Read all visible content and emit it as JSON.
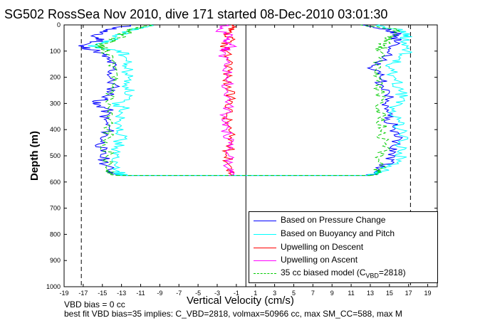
{
  "title": "SG502 RossSea Nov 2010, dive 171 started 08-Dec-2010 03:01:30",
  "footnote_bias": "VBD bias = 0 cc",
  "footnote_bestfit": "best fit VBD bias=35 implies: C_VBD=2818, volmax=50966 cc, max SM_CC=588, max M",
  "legend": {
    "pressure": "Based on Pressure Change",
    "buoyancy": "Based on Buoyancy and Pitch",
    "up_descent": "Upwelling on Descent",
    "up_ascent": "Upwelling on Ascent",
    "model_prefix": "35 cc biased model (C",
    "model_sub": "VBD",
    "model_suffix": "=2818)"
  },
  "colors": {
    "pressure": "#0000ff",
    "buoyancy": "#00ffff",
    "up_descent": "#ff0000",
    "up_ascent": "#ff00ff",
    "model": "#00cc00"
  },
  "chart_data": {
    "type": "line",
    "title": "SG502 RossSea Nov 2010, dive 171 started 08-Dec-2010 03:01:30",
    "xlabel": "Vertical Velocity (cm/s)",
    "ylabel": "Depth (m)",
    "xlim": [
      -19,
      20
    ],
    "ylim": [
      1000,
      0
    ],
    "xticks": [
      -19,
      -17,
      -15,
      -13,
      -11,
      -9,
      -7,
      -5,
      -3,
      -1,
      1,
      3,
      5,
      7,
      9,
      11,
      13,
      15,
      17,
      19
    ],
    "yticks": [
      0,
      100,
      200,
      300,
      400,
      500,
      600,
      700,
      800,
      900,
      1000
    ],
    "reference_lines": [
      -17.2,
      17.2
    ],
    "zero_line": 0,
    "grid": false,
    "legend_position": "bottom-right",
    "series": [
      {
        "name": "Based on Pressure Change",
        "descent": {
          "depth": [
            0,
            20,
            40,
            60,
            80,
            100,
            130,
            160,
            200,
            240,
            280,
            300,
            320,
            360,
            400,
            440,
            480,
            520,
            560,
            575
          ],
          "velocity": [
            -12,
            -14.5,
            -16,
            -15,
            -17.5,
            -15.5,
            -14.5,
            -13.8,
            -14.2,
            -13.8,
            -14.5,
            -16,
            -14.5,
            -14.8,
            -14.3,
            -15,
            -15.2,
            -14.8,
            -14.2,
            -13
          ]
        },
        "ascent": {
          "depth": [
            575,
            560,
            520,
            480,
            440,
            400,
            360,
            320,
            280,
            240,
            200,
            160,
            130,
            100,
            60,
            40,
            20,
            0
          ],
          "velocity": [
            13,
            13.5,
            15.2,
            15,
            16,
            15.5,
            15,
            14.5,
            15,
            14.2,
            14,
            13.2,
            14.5,
            15,
            15.5,
            16,
            15,
            12
          ]
        }
      },
      {
        "name": "Based on Buoyancy and Pitch",
        "descent": {
          "depth": [
            0,
            20,
            40,
            60,
            80,
            100,
            130,
            160,
            200,
            240,
            280,
            300,
            320,
            360,
            400,
            440,
            480,
            520,
            560,
            575
          ],
          "velocity": [
            -10,
            -12,
            -13.5,
            -14,
            -16.5,
            -13,
            -12.5,
            -12.5,
            -12.3,
            -12.3,
            -12.2,
            -14,
            -12.5,
            -13.2,
            -12.8,
            -13.2,
            -13.5,
            -14,
            -13.2,
            -13
          ]
        },
        "ascent": {
          "depth": [
            575,
            560,
            520,
            480,
            440,
            400,
            360,
            320,
            280,
            240,
            200,
            160,
            130,
            100,
            60,
            40,
            20,
            0
          ],
          "velocity": [
            13,
            14,
            16.2,
            16,
            16.5,
            16.2,
            15.8,
            15.5,
            16.5,
            16,
            15.5,
            15,
            16,
            16.8,
            16.5,
            17,
            16,
            14
          ]
        }
      },
      {
        "name": "Upwelling on Descent",
        "depth": [
          0,
          20,
          40,
          60,
          80,
          100,
          150,
          200,
          250,
          300,
          350,
          400,
          450,
          500,
          550,
          575
        ],
        "velocity": [
          -1.5,
          -1.8,
          -2.2,
          -1.5,
          -2.5,
          -2,
          -1.5,
          -2,
          -1.8,
          -1.5,
          -2,
          -1.8,
          -1.5,
          -2,
          -1.5,
          -1.5
        ]
      },
      {
        "name": "Upwelling on Ascent",
        "depth": [
          0,
          20,
          40,
          60,
          80,
          100,
          150,
          200,
          250,
          300,
          350,
          400,
          450,
          500,
          550,
          575
        ],
        "velocity": [
          -2,
          -3,
          -1.5,
          -2,
          -1.2,
          -2.5,
          -2.2,
          -1.8,
          -2,
          -1.8,
          -2.2,
          -2,
          -1.8,
          -1.8,
          -1.8,
          -1.8
        ]
      },
      {
        "name": "35 cc biased model (CVBD=2818)",
        "descent": {
          "depth": [
            0,
            20,
            40,
            60,
            80,
            100,
            150,
            200,
            250,
            300,
            350,
            400,
            450,
            500,
            550,
            575
          ],
          "velocity": [
            -10,
            -12,
            -13,
            -14,
            -15.5,
            -14.5,
            -14,
            -14,
            -14,
            -14.5,
            -14.5,
            -14.5,
            -14.5,
            -14.5,
            -14.5,
            -13.5
          ]
        },
        "ascent": {
          "depth": [
            575,
            550,
            500,
            450,
            400,
            350,
            300,
            250,
            200,
            150,
            100,
            80,
            60,
            40,
            20,
            0
          ],
          "velocity": [
            13,
            14,
            14.2,
            14.5,
            14.2,
            14.2,
            14,
            14,
            13.8,
            13.5,
            14,
            14.5,
            14.8,
            15.5,
            16,
            12
          ]
        }
      }
    ]
  }
}
